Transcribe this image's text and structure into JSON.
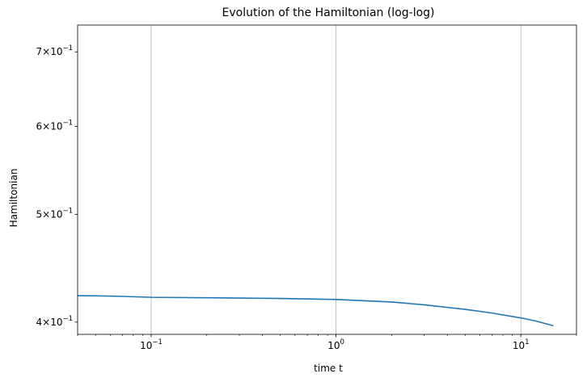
{
  "chart_data": {
    "type": "line",
    "title": "Evolution of the Hamiltonian (log-log)",
    "xlabel": "time t",
    "ylabel": "Hamiltonian",
    "xscale": "log",
    "yscale": "log",
    "xlim": [
      0.04,
      20
    ],
    "ylim": [
      0.39,
      0.74
    ],
    "grid": "x-major",
    "x_ticks": [
      {
        "value": 0.1,
        "base": "10",
        "exp": "−1"
      },
      {
        "value": 1,
        "base": "10",
        "exp": "0"
      },
      {
        "value": 10,
        "base": "10",
        "exp": "1"
      }
    ],
    "y_ticks": [
      {
        "value": 0.4,
        "mant": "4",
        "base": "10",
        "exp": "−1"
      },
      {
        "value": 0.5,
        "mant": "5",
        "base": "10",
        "exp": "−1"
      },
      {
        "value": 0.6,
        "mant": "6",
        "base": "10",
        "exp": "−1"
      },
      {
        "value": 0.7,
        "mant": "7",
        "base": "10",
        "exp": "−1"
      }
    ],
    "series": [
      {
        "color": "#1f77b4",
        "x": [
          0.04,
          0.05,
          0.07,
          0.1,
          0.2,
          0.5,
          1,
          2,
          3,
          5,
          7,
          10,
          12,
          15
        ],
        "y": [
          0.4225,
          0.4224,
          0.4219,
          0.4211,
          0.4207,
          0.4201,
          0.4192,
          0.417,
          0.4146,
          0.4107,
          0.4076,
          0.4035,
          0.401,
          0.397
        ]
      }
    ]
  }
}
